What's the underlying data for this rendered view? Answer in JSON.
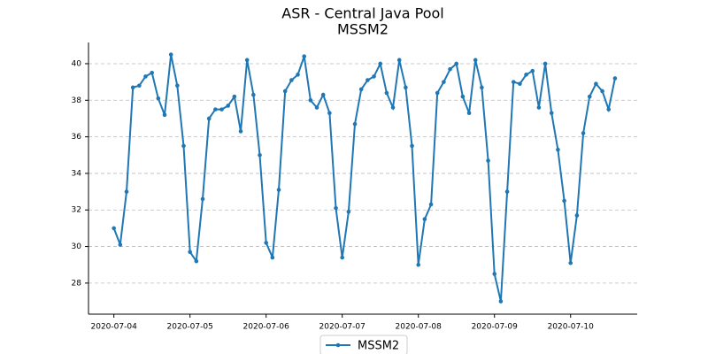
{
  "chart_data": {
    "type": "line",
    "title": "ASR - Central Java Pool",
    "subtitle": "MSSM2",
    "x": [
      "2020-07-04 00:00",
      "2020-07-04 02:00",
      "2020-07-04 04:00",
      "2020-07-04 06:00",
      "2020-07-04 08:00",
      "2020-07-04 10:00",
      "2020-07-04 12:00",
      "2020-07-04 14:00",
      "2020-07-04 16:00",
      "2020-07-04 18:00",
      "2020-07-04 20:00",
      "2020-07-04 22:00",
      "2020-07-05 00:00",
      "2020-07-05 02:00",
      "2020-07-05 04:00",
      "2020-07-05 06:00",
      "2020-07-05 08:00",
      "2020-07-05 10:00",
      "2020-07-05 12:00",
      "2020-07-05 14:00",
      "2020-07-05 16:00",
      "2020-07-05 18:00",
      "2020-07-05 20:00",
      "2020-07-05 22:00",
      "2020-07-06 00:00",
      "2020-07-06 02:00",
      "2020-07-06 04:00",
      "2020-07-06 06:00",
      "2020-07-06 08:00",
      "2020-07-06 10:00",
      "2020-07-06 12:00",
      "2020-07-06 14:00",
      "2020-07-06 16:00",
      "2020-07-06 18:00",
      "2020-07-06 20:00",
      "2020-07-06 22:00",
      "2020-07-07 00:00",
      "2020-07-07 02:00",
      "2020-07-07 04:00",
      "2020-07-07 06:00",
      "2020-07-07 08:00",
      "2020-07-07 10:00",
      "2020-07-07 12:00",
      "2020-07-07 14:00",
      "2020-07-07 16:00",
      "2020-07-07 18:00",
      "2020-07-07 20:00",
      "2020-07-07 22:00",
      "2020-07-08 00:00",
      "2020-07-08 02:00",
      "2020-07-08 04:00",
      "2020-07-08 06:00",
      "2020-07-08 08:00",
      "2020-07-08 10:00",
      "2020-07-08 12:00",
      "2020-07-08 14:00",
      "2020-07-08 16:00",
      "2020-07-08 18:00",
      "2020-07-08 20:00",
      "2020-07-08 22:00",
      "2020-07-09 00:00",
      "2020-07-09 02:00",
      "2020-07-09 04:00",
      "2020-07-09 06:00",
      "2020-07-09 08:00",
      "2020-07-09 10:00",
      "2020-07-09 12:00",
      "2020-07-09 14:00",
      "2020-07-09 16:00",
      "2020-07-09 18:00",
      "2020-07-09 20:00",
      "2020-07-09 22:00",
      "2020-07-10 00:00",
      "2020-07-10 02:00",
      "2020-07-10 04:00",
      "2020-07-10 06:00",
      "2020-07-10 08:00",
      "2020-07-10 10:00",
      "2020-07-10 12:00",
      "2020-07-10 14:00"
    ],
    "series": [
      {
        "name": "MSSM2",
        "color": "#1f77b4",
        "values": [
          31.0,
          30.1,
          33.0,
          38.7,
          38.8,
          39.3,
          39.5,
          38.1,
          37.2,
          40.5,
          38.8,
          35.5,
          29.7,
          29.2,
          32.6,
          37.0,
          37.5,
          37.5,
          37.7,
          38.2,
          36.3,
          40.2,
          38.3,
          35.0,
          30.2,
          29.4,
          33.1,
          38.5,
          39.1,
          39.4,
          40.4,
          38.0,
          37.6,
          38.3,
          37.3,
          32.1,
          29.4,
          31.9,
          36.7,
          38.6,
          39.1,
          39.3,
          40.0,
          38.4,
          37.6,
          40.2,
          38.7,
          35.5,
          29.0,
          31.5,
          32.3,
          38.4,
          39.0,
          39.7,
          40.0,
          38.2,
          37.3,
          40.2,
          38.7,
          34.7,
          28.5,
          27.0,
          33.0,
          39.0,
          38.9,
          39.4,
          39.6,
          37.6,
          40.0,
          37.3,
          35.3,
          32.5,
          29.1,
          31.7,
          36.2,
          38.2,
          38.9,
          38.5,
          37.5,
          39.2
        ]
      }
    ],
    "xlim": [
      "2020-07-03 16:00",
      "2020-07-10 21:00"
    ],
    "xticks": [
      "2020-07-04",
      "2020-07-05",
      "2020-07-06",
      "2020-07-07",
      "2020-07-08",
      "2020-07-09",
      "2020-07-10"
    ],
    "ylim": [
      26.3,
      41.16
    ],
    "yticks": [
      28,
      30,
      32,
      34,
      36,
      38,
      40
    ],
    "grid": true,
    "legend": "bottom"
  }
}
